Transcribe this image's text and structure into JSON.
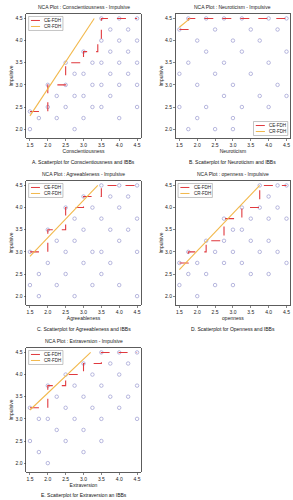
{
  "chart_data": [
    {
      "type": "scatter",
      "title": "NCA Plot : Conscientiousness - Impulsive",
      "caption": "A. Scatterplot for Conscientiousness and IBBs",
      "x_label": "Conscientiousness",
      "y_label": "Impulsive",
      "xlim": [
        1.4,
        4.6
      ],
      "ylim": [
        1.8,
        4.6
      ],
      "xticks": [
        1.5,
        {
          "value": 2,
          "label": "2.0"
        },
        2.5,
        {
          "value": 3,
          "label": "3.0"
        },
        3.5,
        {
          "value": 4,
          "label": "4.0"
        },
        4.5
      ],
      "yticks": [
        {
          "value": 2,
          "label": "2.0"
        },
        2.5,
        {
          "value": 3,
          "label": "3.0"
        },
        3.5,
        {
          "value": 4,
          "label": "4.0"
        },
        4.5
      ],
      "grid": false,
      "legend": "top-left",
      "series": [
        {
          "type": "scatter",
          "marker": "circle-open",
          "color": "#9a9ad0",
          "x": [
            1.5,
            1.5,
            1.75,
            2.0,
            2.0,
            2.25,
            2.25,
            2.5,
            2.5,
            2.5,
            2.75,
            2.75,
            2.75,
            3.0,
            3.0,
            3.0,
            3.0,
            3.25,
            3.25,
            3.25,
            3.5,
            3.5,
            3.5,
            3.5,
            3.5,
            3.75,
            3.75,
            3.75,
            3.75,
            4.0,
            4.0,
            4.0,
            4.0,
            4.0,
            4.25,
            4.25,
            4.25,
            4.5,
            4.5,
            4.5,
            4.5,
            4.5
          ],
          "values": [
            2.0,
            2.4,
            2.25,
            2.5,
            3.0,
            2.75,
            2.25,
            3.5,
            3.0,
            2.5,
            3.25,
            2.75,
            2.0,
            3.75,
            3.25,
            2.75,
            2.25,
            3.5,
            3.0,
            2.5,
            4.5,
            4.0,
            3.5,
            3.0,
            2.5,
            4.25,
            3.75,
            3.25,
            2.75,
            4.5,
            4.0,
            3.5,
            3.0,
            2.25,
            4.25,
            3.75,
            3.25,
            4.5,
            4.0,
            3.5,
            3.0,
            2.5
          ]
        },
        {
          "name": "CE-FDH",
          "type": "step",
          "line_style": "dashed",
          "color": "#e0393e",
          "x": [
            1.5,
            2.0,
            2.5,
            3.0,
            3.4,
            3.5,
            4.5
          ],
          "values": [
            2.4,
            3.0,
            3.5,
            3.75,
            4.0,
            4.5,
            4.5
          ]
        },
        {
          "name": "CR-FDH",
          "type": "line",
          "line_style": "solid",
          "color": "#f2b84b",
          "x": [
            1.5,
            3.3
          ],
          "values": [
            2.3,
            4.5
          ]
        }
      ]
    },
    {
      "type": "scatter",
      "title": "NCA Plot : Neuroticism - Impulsive",
      "caption": "B. Scatterplot for Neuroticism and IBBs",
      "x_label": "Neuroticism",
      "y_label": "Impulsive",
      "xlim": [
        1.4,
        4.6
      ],
      "ylim": [
        1.8,
        4.6
      ],
      "xticks": [
        1.5,
        {
          "value": 2,
          "label": "2.0"
        },
        2.5,
        {
          "value": 3,
          "label": "3.0"
        },
        3.5,
        {
          "value": 4,
          "label": "4.0"
        },
        4.5
      ],
      "yticks": [
        {
          "value": 2,
          "label": "2.0"
        },
        2.5,
        {
          "value": 3,
          "label": "3.0"
        },
        3.5,
        {
          "value": 4,
          "label": "4.0"
        },
        4.5
      ],
      "grid": false,
      "legend": "bottom-right",
      "series": [
        {
          "type": "scatter",
          "marker": "circle-open",
          "color": "#9a9ad0",
          "x": [
            1.5,
            1.5,
            1.5,
            1.75,
            1.75,
            1.75,
            2.0,
            2.0,
            2.0,
            2.25,
            2.25,
            2.25,
            2.5,
            2.5,
            2.5,
            2.75,
            2.75,
            2.75,
            3.0,
            3.0,
            3.0,
            3.0,
            3.25,
            3.25,
            3.25,
            3.5,
            3.5,
            3.75,
            3.75,
            4.0,
            4.0,
            4.0,
            4.25,
            4.25,
            4.5,
            4.5,
            4.5
          ],
          "values": [
            2.5,
            3.25,
            4.25,
            2.0,
            3.5,
            4.5,
            2.25,
            3.0,
            4.0,
            2.5,
            3.75,
            4.5,
            2.0,
            3.25,
            4.25,
            2.75,
            3.5,
            4.5,
            2.0,
            2.25,
            3.0,
            4.0,
            2.5,
            3.75,
            4.5,
            3.25,
            4.25,
            2.75,
            4.0,
            2.5,
            3.5,
            4.5,
            3.0,
            4.25,
            2.75,
            3.75,
            4.5
          ]
        },
        {
          "name": "CE-FDH",
          "type": "step",
          "line_style": "dashed",
          "color": "#e0393e",
          "x": [
            1.5,
            1.75,
            4.5
          ],
          "values": [
            4.25,
            4.5,
            4.5
          ]
        },
        {
          "name": "CR-FDH",
          "type": "line",
          "line_style": "solid",
          "color": "#f2b84b",
          "x": [
            1.5,
            1.8
          ],
          "values": [
            4.3,
            4.5
          ]
        }
      ]
    },
    {
      "type": "scatter",
      "title": "NCA Plot : Agreeableness - Impulsive",
      "caption": "C. Scatterplot for Agreeableness and IBBs",
      "x_label": "Agreeableness",
      "y_label": "Impulsive",
      "xlim": [
        1.4,
        4.6
      ],
      "ylim": [
        1.8,
        4.6
      ],
      "xticks": [
        1.5,
        {
          "value": 2,
          "label": "2.0"
        },
        2.5,
        {
          "value": 3,
          "label": "3.0"
        },
        3.5,
        {
          "value": 4,
          "label": "4.0"
        },
        4.5
      ],
      "yticks": [
        {
          "value": 2,
          "label": "2.0"
        },
        2.5,
        {
          "value": 3,
          "label": "3.0"
        },
        3.5,
        {
          "value": 4,
          "label": "4.0"
        },
        4.5
      ],
      "grid": false,
      "legend": "top-left",
      "series": [
        {
          "type": "scatter",
          "marker": "circle-open",
          "color": "#9a9ad0",
          "x": [
            1.5,
            1.5,
            1.75,
            1.75,
            2.0,
            2.0,
            2.25,
            2.25,
            2.5,
            2.5,
            2.5,
            2.75,
            2.75,
            2.75,
            3.0,
            3.0,
            3.0,
            3.25,
            3.25,
            3.25,
            3.5,
            3.5,
            3.5,
            3.5,
            3.75,
            3.75,
            3.75,
            4.0,
            4.0,
            4.0,
            4.0,
            4.25,
            4.25,
            4.5,
            4.5,
            4.5,
            4.5
          ],
          "values": [
            2.25,
            3.0,
            2.5,
            2.0,
            3.5,
            2.75,
            3.25,
            2.25,
            4.0,
            3.0,
            2.5,
            3.75,
            3.25,
            2.0,
            4.25,
            3.5,
            2.75,
            4.0,
            3.0,
            2.25,
            4.5,
            3.75,
            3.0,
            2.5,
            4.25,
            3.5,
            2.75,
            4.5,
            4.0,
            3.25,
            2.25,
            4.25,
            3.5,
            4.5,
            3.75,
            3.0,
            2.0
          ]
        },
        {
          "name": "CE-FDH",
          "type": "step",
          "line_style": "dashed",
          "color": "#e0393e",
          "x": [
            1.5,
            2.0,
            2.5,
            3.0,
            3.5,
            4.5
          ],
          "values": [
            3.0,
            3.5,
            4.0,
            4.25,
            4.5,
            4.5
          ]
        },
        {
          "name": "CR-FDH",
          "type": "line",
          "line_style": "solid",
          "color": "#f2b84b",
          "x": [
            1.5,
            3.4
          ],
          "values": [
            2.9,
            4.5
          ]
        }
      ]
    },
    {
      "type": "scatter",
      "title": "NCA Plot : openness - Impulsive",
      "caption": "D. Scatterplot for Openness and IBBs",
      "x_label": "openness",
      "y_label": "Impulsive",
      "xlim": [
        1.4,
        4.6
      ],
      "ylim": [
        1.8,
        4.6
      ],
      "xticks": [
        1.5,
        {
          "value": 2,
          "label": "2.0"
        },
        2.5,
        {
          "value": 3,
          "label": "3.0"
        },
        3.5,
        {
          "value": 4,
          "label": "4.0"
        },
        4.5
      ],
      "yticks": [
        {
          "value": 2,
          "label": "2.0"
        },
        2.5,
        {
          "value": 3,
          "label": "3.0"
        },
        3.5,
        {
          "value": 4,
          "label": "4.0"
        },
        4.5
      ],
      "grid": false,
      "legend": "top-left",
      "series": [
        {
          "type": "scatter",
          "marker": "circle-open",
          "color": "#9a9ad0",
          "x": [
            1.5,
            1.5,
            1.75,
            1.75,
            2.0,
            2.0,
            2.25,
            2.25,
            2.5,
            2.5,
            2.75,
            2.75,
            2.75,
            3.0,
            3.0,
            3.0,
            3.25,
            3.25,
            3.25,
            3.5,
            3.5,
            3.5,
            3.75,
            3.75,
            3.75,
            4.0,
            4.0,
            4.0,
            4.0,
            4.25,
            4.25,
            4.25,
            4.5,
            4.5,
            4.5
          ],
          "values": [
            2.75,
            2.25,
            3.0,
            2.5,
            2.75,
            2.0,
            3.25,
            2.5,
            3.0,
            2.25,
            3.75,
            3.25,
            2.75,
            3.5,
            3.0,
            2.25,
            4.0,
            3.5,
            2.75,
            3.75,
            3.25,
            2.5,
            4.5,
            4.0,
            3.0,
            4.25,
            3.75,
            3.25,
            2.5,
            4.5,
            4.0,
            3.0,
            4.5,
            3.75,
            2.75
          ]
        },
        {
          "name": "CE-FDH",
          "type": "step",
          "line_style": "dashed",
          "color": "#e0393e",
          "x": [
            1.5,
            1.75,
            2.25,
            2.75,
            3.25,
            3.75,
            4.5
          ],
          "values": [
            2.75,
            3.0,
            3.25,
            3.75,
            4.0,
            4.5,
            4.5
          ]
        },
        {
          "name": "CR-FDH",
          "type": "line",
          "line_style": "solid",
          "color": "#f2b84b",
          "x": [
            1.5,
            3.75
          ],
          "values": [
            2.6,
            4.5
          ]
        }
      ]
    },
    {
      "type": "scatter",
      "title": "NCA Plot : Extraversion - Impulsive",
      "caption": "E. Scatterplot for Extraversion an IBBs",
      "x_label": "Extraversion",
      "y_label": "Impulsive",
      "xlim": [
        1.4,
        4.6
      ],
      "ylim": [
        1.8,
        4.6
      ],
      "xticks": [
        1.5,
        {
          "value": 2,
          "label": "2.0"
        },
        2.5,
        {
          "value": 3,
          "label": "3.0"
        },
        3.5,
        {
          "value": 4,
          "label": "4.0"
        },
        4.5
      ],
      "yticks": [
        {
          "value": 2,
          "label": "2.0"
        },
        2.5,
        {
          "value": 3,
          "label": "3.0"
        },
        3.5,
        {
          "value": 4,
          "label": "4.0"
        },
        4.5
      ],
      "grid": false,
      "legend": "top-left",
      "series": [
        {
          "type": "scatter",
          "marker": "circle-open",
          "color": "#9a9ad0",
          "x": [
            1.5,
            1.5,
            1.75,
            1.75,
            2.0,
            2.0,
            2.0,
            2.25,
            2.25,
            2.5,
            2.5,
            2.5,
            2.75,
            2.75,
            3.0,
            3.0,
            3.0,
            3.0,
            3.25,
            3.25,
            3.5,
            3.5,
            3.5,
            3.5,
            3.75,
            3.75,
            4.0,
            4.0,
            4.0,
            4.25,
            4.25,
            4.5,
            4.5,
            4.5
          ],
          "values": [
            3.25,
            2.5,
            3.0,
            2.25,
            3.75,
            3.0,
            2.0,
            3.5,
            2.75,
            4.0,
            3.25,
            2.5,
            3.75,
            3.0,
            4.25,
            3.5,
            2.75,
            2.25,
            4.0,
            3.25,
            4.5,
            3.75,
            3.0,
            2.5,
            4.25,
            3.5,
            4.5,
            4.0,
            3.25,
            4.25,
            3.5,
            4.5,
            3.75,
            3.0
          ]
        },
        {
          "name": "CE-FDH",
          "type": "step",
          "line_style": "dashed",
          "color": "#e0393e",
          "x": [
            1.5,
            2.0,
            2.5,
            3.0,
            3.5,
            4.5
          ],
          "values": [
            3.25,
            3.75,
            4.0,
            4.25,
            4.5,
            4.5
          ]
        },
        {
          "name": "CR-FDH",
          "type": "line",
          "line_style": "solid",
          "color": "#f2b84b",
          "x": [
            1.5,
            3.2
          ],
          "values": [
            3.2,
            4.5
          ]
        }
      ]
    }
  ]
}
